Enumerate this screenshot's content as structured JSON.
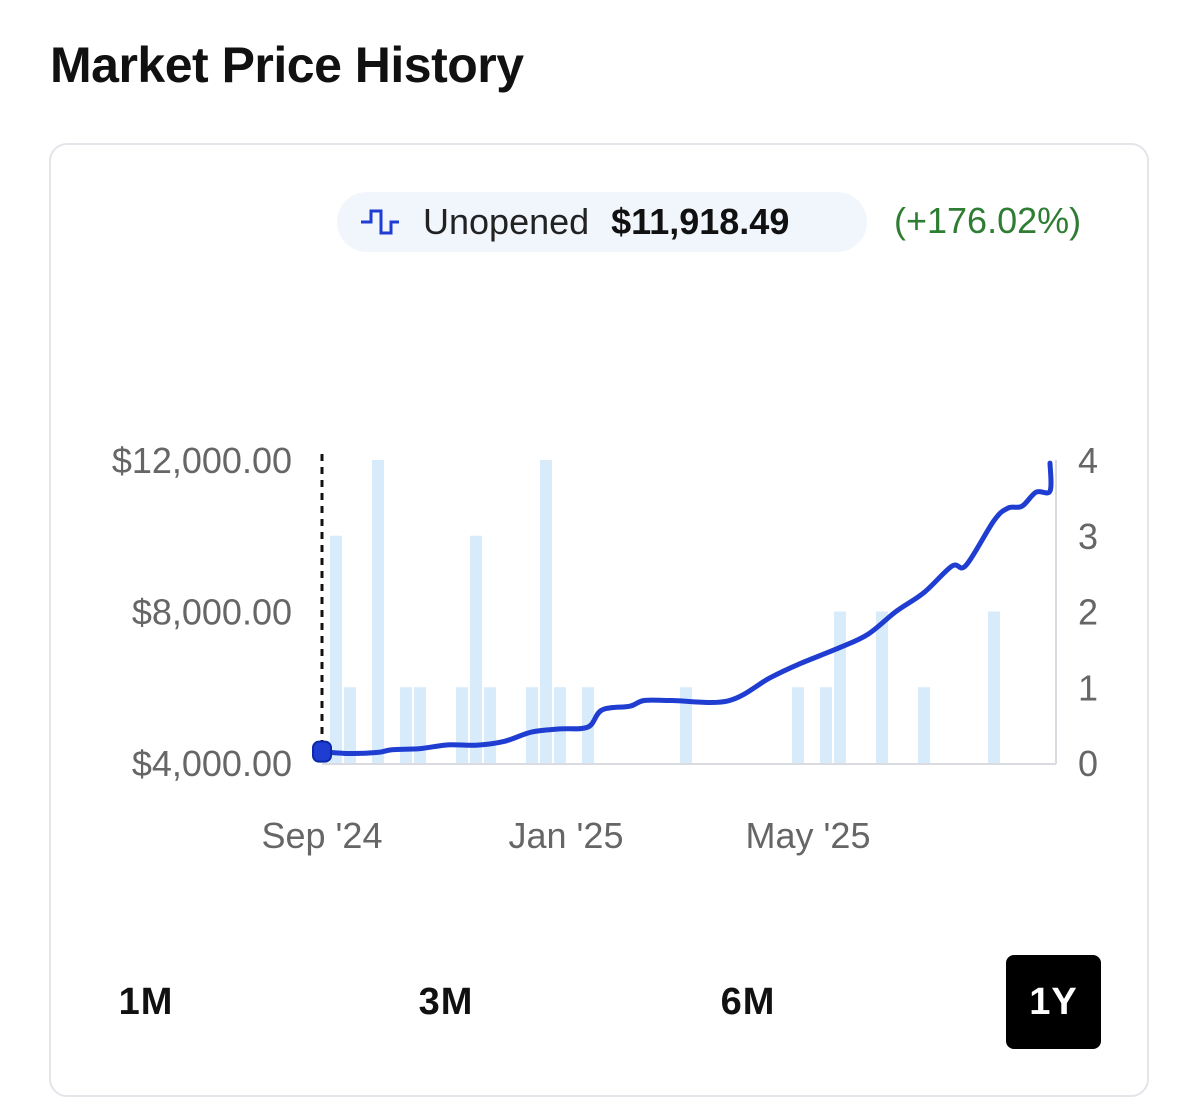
{
  "page": {
    "title": "Market Price History"
  },
  "legend": {
    "icon": "step-line-icon",
    "label": "Unopened",
    "price": "$11,918.49",
    "change": "(+176.02%)",
    "line_color": "#1f3ed1",
    "change_color": "#2e7d32"
  },
  "range_tabs": [
    {
      "label": "1M",
      "active": false
    },
    {
      "label": "3M",
      "active": false
    },
    {
      "label": "6M",
      "active": false
    },
    {
      "label": "1Y",
      "active": true
    }
  ],
  "chart_data": {
    "type": "line",
    "x_ticks": [
      "Sep '24",
      "Jan '25",
      "May '25"
    ],
    "y_left_ticks": [
      "$12,000.00",
      "$8,000.00",
      "$4,000.00"
    ],
    "y_left_range": [
      4000,
      12000
    ],
    "y_right_ticks": [
      "4",
      "3",
      "2",
      "1",
      "0"
    ],
    "y_right_range": [
      0,
      4
    ],
    "x_range": [
      "2024-08-24",
      "2025-08-23"
    ],
    "grid": false,
    "price_series": {
      "color": "#1f3ed1",
      "points": [
        [
          "2024-08-24",
          4300
        ],
        [
          "2024-09-07",
          4250
        ],
        [
          "2024-09-21",
          4280
        ],
        [
          "2024-09-28",
          4350
        ],
        [
          "2024-10-12",
          4380
        ],
        [
          "2024-10-26",
          4480
        ],
        [
          "2024-11-09",
          4470
        ],
        [
          "2024-11-23",
          4570
        ],
        [
          "2024-12-07",
          4820
        ],
        [
          "2024-12-21",
          4900
        ],
        [
          "2025-01-04",
          4950
        ],
        [
          "2025-01-11",
          5400
        ],
        [
          "2025-01-25",
          5500
        ],
        [
          "2025-02-01",
          5650
        ],
        [
          "2025-02-15",
          5650
        ],
        [
          "2025-03-15",
          5640
        ],
        [
          "2025-04-05",
          6250
        ],
        [
          "2025-04-19",
          6600
        ],
        [
          "2025-05-10",
          7050
        ],
        [
          "2025-05-24",
          7400
        ],
        [
          "2025-06-07",
          8000
        ],
        [
          "2025-06-21",
          8500
        ],
        [
          "2025-07-05",
          9200
        ],
        [
          "2025-07-12",
          9220
        ],
        [
          "2025-07-26",
          10400
        ],
        [
          "2025-08-02",
          10730
        ],
        [
          "2025-08-09",
          10780
        ],
        [
          "2025-08-16",
          11150
        ],
        [
          "2025-08-23",
          11180
        ],
        [
          "2025-08-30",
          11950
        ],
        [
          "2025-09-13",
          11918
        ]
      ]
    },
    "volume_series": {
      "color": "#d7ebfb",
      "bars": [
        [
          "2024-08-31",
          3
        ],
        [
          "2024-09-07",
          1
        ],
        [
          "2024-09-21",
          4
        ],
        [
          "2024-10-05",
          1
        ],
        [
          "2024-10-12",
          1
        ],
        [
          "2024-11-02",
          1
        ],
        [
          "2024-11-09",
          3
        ],
        [
          "2024-11-16",
          1
        ],
        [
          "2024-12-07",
          1
        ],
        [
          "2024-12-14",
          4
        ],
        [
          "2024-12-21",
          1
        ],
        [
          "2025-01-04",
          1
        ],
        [
          "2025-02-22",
          1
        ],
        [
          "2025-04-19",
          1
        ],
        [
          "2025-05-03",
          1
        ],
        [
          "2025-05-10",
          2
        ],
        [
          "2025-05-31",
          2
        ],
        [
          "2025-06-21",
          1
        ],
        [
          "2025-07-26",
          2
        ]
      ]
    },
    "marker": {
      "date": "2024-08-24",
      "value": 4300,
      "color": "#1f3ed1"
    }
  }
}
